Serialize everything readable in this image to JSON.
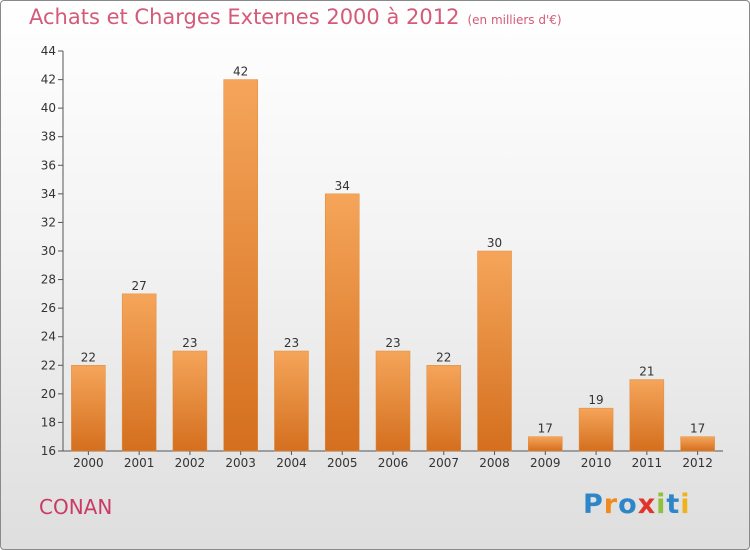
{
  "page": {
    "title": "Achats et Charges Externes 2000 à 2012",
    "unit": "(en milliers d'€)",
    "commune": "CONAN",
    "logo": "Proxiti",
    "colors": {
      "bar_top": "#f5a55a",
      "bar_bottom": "#d46f1e",
      "title": "#d45a7a",
      "commune": "#c93b64",
      "logo_letters": [
        "#2e86c8",
        "#f08a1c",
        "#2e86c8",
        "#e0352b",
        "#8fc23a",
        "#2e86c8",
        "#f0b21c"
      ]
    }
  },
  "chart_data": {
    "type": "bar",
    "title": "Achats et Charges Externes 2000 à 2012",
    "subtitle": "(en milliers d'€)",
    "categories": [
      "2000",
      "2001",
      "2002",
      "2003",
      "2004",
      "2005",
      "2006",
      "2007",
      "2008",
      "2009",
      "2010",
      "2011",
      "2012"
    ],
    "values": [
      22,
      27,
      23,
      42,
      23,
      34,
      23,
      22,
      30,
      17,
      19,
      21,
      17
    ],
    "ylim": [
      16,
      44
    ],
    "yticks": [
      16,
      18,
      20,
      22,
      24,
      26,
      28,
      30,
      32,
      34,
      36,
      38,
      40,
      42,
      44
    ],
    "grid": false,
    "data_labels": true
  }
}
